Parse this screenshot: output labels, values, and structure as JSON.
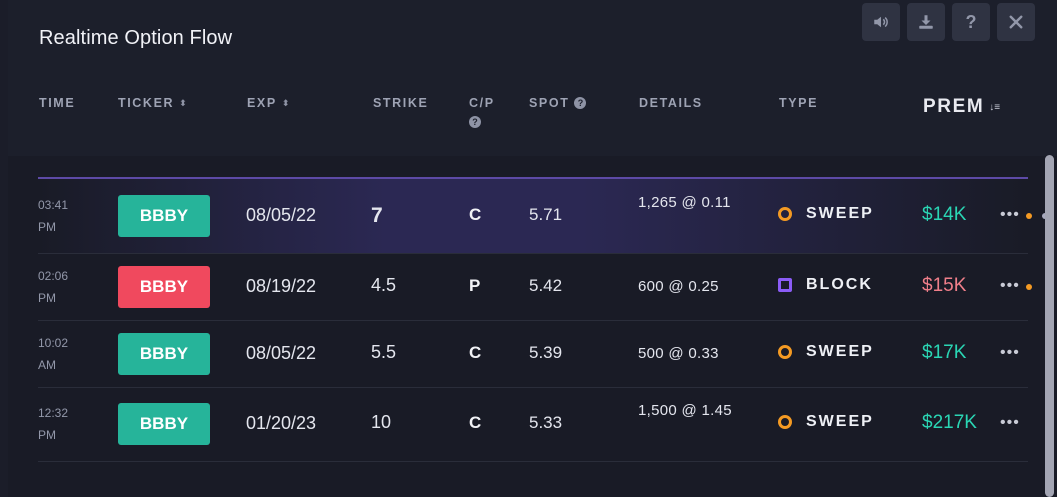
{
  "title": "Realtime Option Flow",
  "toolbar": [
    {
      "name": "sound-icon"
    },
    {
      "name": "download-icon"
    },
    {
      "name": "help-icon",
      "label": "?"
    },
    {
      "name": "close-icon"
    }
  ],
  "columns": {
    "time": "TIME",
    "ticker": "TICKER",
    "exp": "EXP",
    "strike": "STRIKE",
    "cp": "C/P",
    "spot": "SPOT",
    "details": "DETAILS",
    "type": "TYPE",
    "prem": "PREM",
    "sort_glyph": "⬍",
    "prem_sort_glyph": "↓≡",
    "help_glyph": "?"
  },
  "rows": [
    {
      "time": "03:41\nPM",
      "ticker": "BBBY",
      "side": "call",
      "ticker_color": "#26b49a",
      "exp": "08/05/22",
      "strike": "7",
      "cp": "C",
      "spot": "5.71",
      "details": "1,265 @ 0.11",
      "type": "SWEEP",
      "type_icon": "circle",
      "prem": "$14K",
      "prem_color": "#2ad6b4",
      "more": "•••",
      "highlighted": true,
      "alert": true
    },
    {
      "time": "02:06\nPM",
      "ticker": "BBBY",
      "side": "put",
      "ticker_color": "#f0495e",
      "exp": "08/19/22",
      "strike": "4.5",
      "cp": "P",
      "spot": "5.42",
      "details": "600 @ 0.25",
      "type": "BLOCK",
      "type_icon": "square",
      "prem": "$15K",
      "prem_color": "#f07f8a",
      "more": "•••",
      "highlighted": false,
      "alert": true
    },
    {
      "time": "10:02\nAM",
      "ticker": "BBBY",
      "side": "call",
      "ticker_color": "#26b49a",
      "exp": "08/05/22",
      "strike": "5.5",
      "cp": "C",
      "spot": "5.39",
      "details": "500 @ 0.33",
      "type": "SWEEP",
      "type_icon": "circle",
      "prem": "$17K",
      "prem_color": "#2ad6b4",
      "more": "•••",
      "highlighted": false,
      "alert": false
    },
    {
      "time": "12:32\nPM",
      "ticker": "BBBY",
      "side": "call",
      "ticker_color": "#26b49a",
      "exp": "01/20/23",
      "strike": "10",
      "cp": "C",
      "spot": "5.33",
      "details": "1,500 @ 1.45",
      "type": "SWEEP",
      "type_icon": "circle",
      "prem": "$217K",
      "prem_color": "#2ad6b4",
      "more": "•••",
      "highlighted": false,
      "alert": false
    }
  ]
}
